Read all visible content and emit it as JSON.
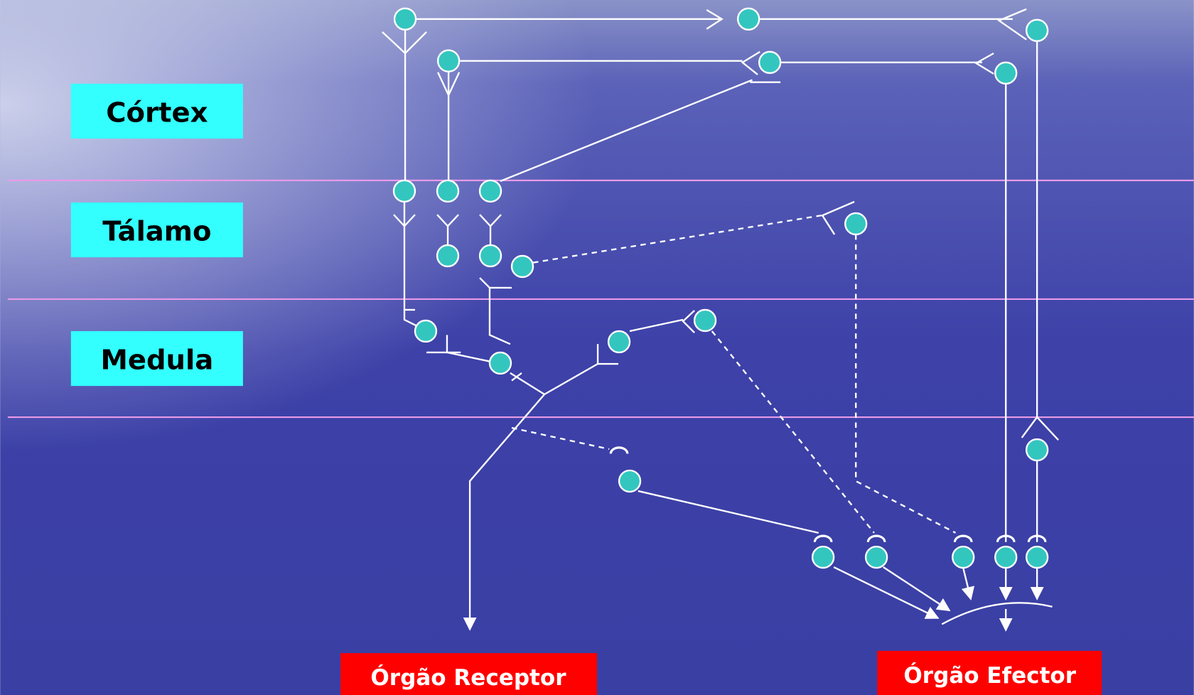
{
  "levels": [
    "Córtex",
    "Tálamo",
    "Medula"
  ],
  "organs": {
    "receptor": "Órgão Receptor",
    "effector": "Órgão Efector"
  }
}
